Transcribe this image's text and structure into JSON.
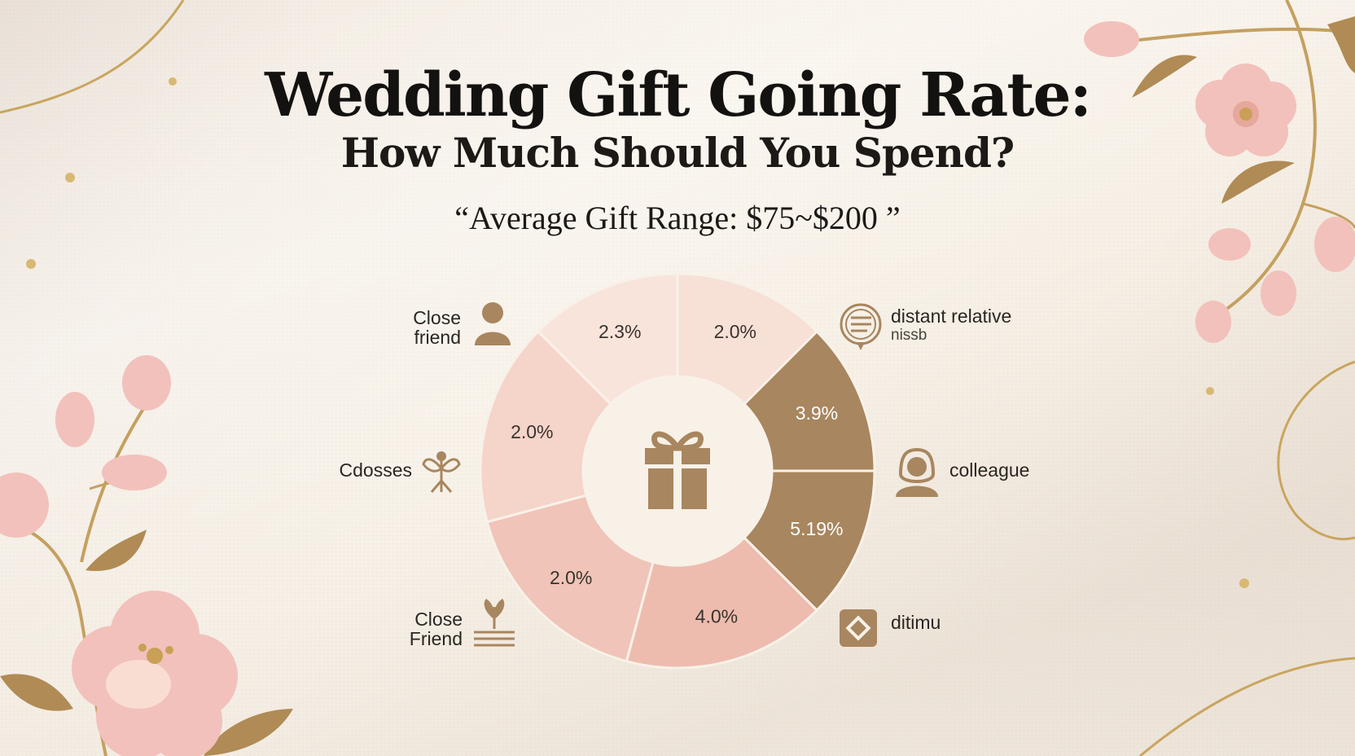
{
  "header": {
    "title": "Wedding Gift Going Rate:",
    "subtitle": "How Much Should You Spend?",
    "range_text": "“Average Gift Range: $75~$200 ”"
  },
  "chart_data": {
    "type": "pie",
    "title": "Wedding Gift Going Rate:",
    "subtitle": "How Much Should You Spend?",
    "donut": true,
    "center_icon": "gift-icon",
    "slice_labels": [
      "2.0%",
      "3.9%",
      "5.19%",
      "4.0%",
      "2.0%",
      "2.0%",
      "2.3%"
    ],
    "slice_angles_deg": [
      45,
      45,
      45,
      60,
      60,
      60,
      45
    ],
    "slice_colors": [
      "#f7e0d6",
      "#a8865f",
      "#a8865f",
      "#edbcae",
      "#f0c4b8",
      "#f5d4ca",
      "#f9e4dc"
    ],
    "legend_labels": [
      {
        "text": "Close friend",
        "icon": "person-icon"
      },
      {
        "text": "distant relative",
        "sub": "nissb",
        "icon": "chat-badge-icon"
      },
      {
        "text": "Cdosses",
        "icon": "flower-sprout-icon"
      },
      {
        "text": "colleague",
        "icon": "colleague-icon"
      },
      {
        "text": "Close Friend",
        "icon": "sprout-lines-icon"
      },
      {
        "text": "ditimu",
        "icon": "diamond-box-icon"
      }
    ]
  },
  "colors": {
    "gold": "#a8865f",
    "blush": "#f0c4b8",
    "petal": "#f2c9c1",
    "text": "#141210"
  }
}
